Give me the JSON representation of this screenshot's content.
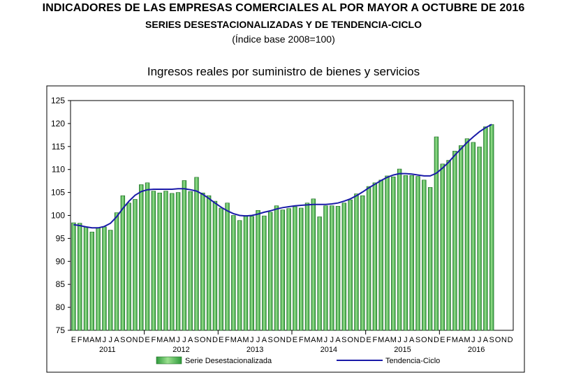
{
  "header": {
    "title": "INDICADORES DE LAS EMPRESAS COMERCIALES AL POR MAYOR A OCTUBRE DE 2016",
    "subtitle": "SERIES DESESTACIONALIZADAS Y DE TENDENCIA-CICLO",
    "base_note": "(Índice base 2008=100)"
  },
  "colors": {
    "bar_fill": "#3cb34a",
    "bar_highlight": "#9be08f",
    "bar_stroke": "#1e6b24",
    "trend_line": "#1a1aa8",
    "grid": "#c8c8c8",
    "frame": "#000000"
  },
  "chart_data": {
    "type": "bar",
    "title": "Ingresos reales por suministro de bienes y servicios",
    "ylim": [
      75,
      125
    ],
    "yticks": [
      75,
      80,
      85,
      90,
      95,
      100,
      105,
      110,
      115,
      120,
      125
    ],
    "grid": false,
    "legend_position": "bottom",
    "month_labels": [
      "E",
      "F",
      "M",
      "A",
      "M",
      "J",
      "J",
      "A",
      "S",
      "O",
      "N",
      "D"
    ],
    "years": [
      "2011",
      "2012",
      "2013",
      "2014",
      "2015",
      "2016"
    ],
    "series": [
      {
        "name": "Serie Desestacionalizada",
        "kind": "bar",
        "values": [
          98.4,
          98.3,
          97.5,
          96.4,
          97.3,
          97.5,
          96.8,
          100.6,
          104.3,
          102.7,
          103.5,
          106.7,
          107.1,
          105.3,
          104.9,
          105.3,
          104.8,
          105.0,
          107.6,
          105.2,
          108.3,
          104.9,
          104.3,
          103.1,
          101.6,
          102.7,
          100.0,
          98.9,
          100.0,
          99.8,
          101.1,
          99.9,
          100.7,
          102.1,
          101.2,
          101.5,
          101.9,
          101.6,
          102.7,
          103.6,
          99.7,
          102.1,
          102.1,
          102.0,
          102.7,
          103.4,
          104.7,
          104.3,
          106.3,
          107.1,
          107.7,
          108.6,
          108.4,
          110.1,
          108.7,
          108.7,
          108.5,
          107.7,
          106.1,
          117.1,
          111.2,
          112.0,
          114.0,
          115.2,
          116.7,
          115.9,
          114.9,
          119.3,
          119.8
        ]
      },
      {
        "name": "Tendencia-Ciclo",
        "kind": "line",
        "values": [
          98.0,
          97.8,
          97.5,
          97.3,
          97.3,
          97.6,
          98.3,
          99.7,
          101.5,
          103.1,
          104.4,
          105.2,
          105.6,
          105.7,
          105.7,
          105.7,
          105.7,
          105.8,
          105.8,
          105.6,
          105.3,
          104.6,
          103.7,
          102.7,
          101.8,
          101.0,
          100.4,
          100.0,
          99.9,
          100.0,
          100.3,
          100.7,
          101.0,
          101.4,
          101.7,
          101.9,
          102.1,
          102.2,
          102.3,
          102.4,
          102.4,
          102.4,
          102.5,
          102.7,
          103.1,
          103.6,
          104.3,
          105.1,
          106.0,
          106.8,
          107.6,
          108.3,
          108.8,
          109.1,
          109.1,
          109.0,
          108.8,
          108.6,
          108.6,
          109.2,
          110.3,
          111.6,
          113.1,
          114.5,
          115.9,
          117.1,
          118.2,
          119.1,
          119.8
        ]
      }
    ]
  }
}
